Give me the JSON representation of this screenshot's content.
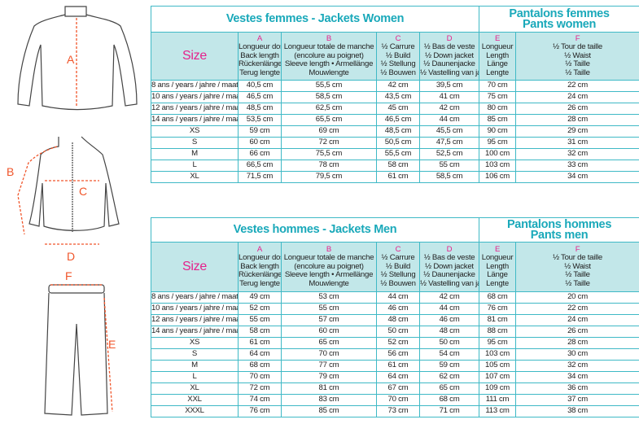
{
  "figure_labels": {
    "a": "A",
    "b": "B",
    "c": "C",
    "d": "D",
    "e": "E",
    "f": "F"
  },
  "colors": {
    "border": "#3fb9c6",
    "header_bg": "#c2e7e9",
    "title": "#1aa9ba",
    "letters": "#e5218b",
    "measure_lines": "#f0552a"
  },
  "columns": [
    {
      "letter": "",
      "lines": [
        "Size"
      ]
    },
    {
      "letter": "A",
      "lines": [
        "Longueur dos",
        "Back length",
        "Rückenlänge",
        "Terug lengte"
      ]
    },
    {
      "letter": "B",
      "lines": [
        "Longueur totale de manche",
        "(encolure au poignet)",
        "Sleeve length • Armellänge",
        "Mouwlengte"
      ]
    },
    {
      "letter": "C",
      "lines": [
        "½ Carrure",
        "½ Build",
        "½ Stellung",
        "½ Bouwen"
      ]
    },
    {
      "letter": "D",
      "lines": [
        "½ Bas de veste",
        "½ Down jacket",
        "½ Daunenjacke",
        "½ Vastelling van jas"
      ]
    },
    {
      "letter": "E",
      "lines": [
        "Longueur",
        "Length",
        "Länge",
        "Lengte"
      ]
    },
    {
      "letter": "F",
      "lines": [
        "½ Tour de taille",
        "½ Waist",
        "½ Taille",
        "½ Taille"
      ]
    }
  ],
  "tables": [
    {
      "title": "Vestes femmes - Jackets Women",
      "pants_title": [
        "Pantalons femmes",
        "Pants women"
      ],
      "rows": [
        [
          "8 ans / years / jahre / maat",
          "40,5 cm",
          "55,5 cm",
          "42 cm",
          "39,5 cm",
          "70 cm",
          "22 cm"
        ],
        [
          "10 ans / years / jahre / maat",
          "46,5 cm",
          "58,5 cm",
          "43,5 cm",
          "41 cm",
          "75 cm",
          "24 cm"
        ],
        [
          "12 ans / years / jahre / maat",
          "48,5 cm",
          "62,5 cm",
          "45 cm",
          "42 cm",
          "80 cm",
          "26 cm"
        ],
        [
          "14 ans / years / jahre / maat",
          "53,5 cm",
          "65,5 cm",
          "46,5 cm",
          "44 cm",
          "85 cm",
          "28 cm"
        ],
        [
          "XS",
          "59 cm",
          "69 cm",
          "48,5 cm",
          "45,5 cm",
          "90 cm",
          "29 cm"
        ],
        [
          "S",
          "60 cm",
          "72 cm",
          "50,5 cm",
          "47,5 cm",
          "95 cm",
          "31 cm"
        ],
        [
          "M",
          "66 cm",
          "75,5 cm",
          "55,5 cm",
          "52,5 cm",
          "100 cm",
          "32 cm"
        ],
        [
          "L",
          "66,5 cm",
          "78 cm",
          "58 cm",
          "55 cm",
          "103 cm",
          "33 cm"
        ],
        [
          "XL",
          "71,5 cm",
          "79,5 cm",
          "61 cm",
          "58,5 cm",
          "106 cm",
          "34 cm"
        ]
      ]
    },
    {
      "title": "Vestes hommes - Jackets Men",
      "pants_title": [
        "Pantalons hommes",
        "Pants men"
      ],
      "rows": [
        [
          "8 ans / years / jahre / maat",
          "49 cm",
          "53 cm",
          "44 cm",
          "42 cm",
          "68 cm",
          "20 cm"
        ],
        [
          "10 ans / years / jahre / maat",
          "52 cm",
          "55 cm",
          "46 cm",
          "44 cm",
          "76 cm",
          "22 cm"
        ],
        [
          "12 ans / years / jahre / maat",
          "55 cm",
          "57 cm",
          "48 cm",
          "46 cm",
          "81 cm",
          "24 cm"
        ],
        [
          "14 ans / years / jahre / maat",
          "58 cm",
          "60 cm",
          "50 cm",
          "48 cm",
          "88 cm",
          "26 cm"
        ],
        [
          "XS",
          "61 cm",
          "65 cm",
          "52 cm",
          "50 cm",
          "95 cm",
          "28 cm"
        ],
        [
          "S",
          "64 cm",
          "70 cm",
          "56 cm",
          "54 cm",
          "103 cm",
          "30 cm"
        ],
        [
          "M",
          "68 cm",
          "77 cm",
          "61 cm",
          "59 cm",
          "105 cm",
          "32 cm"
        ],
        [
          "L",
          "70 cm",
          "79 cm",
          "64 cm",
          "62 cm",
          "107 cm",
          "34 cm"
        ],
        [
          "XL",
          "72 cm",
          "81 cm",
          "67 cm",
          "65 cm",
          "109 cm",
          "36 cm"
        ],
        [
          "XXL",
          "74 cm",
          "83 cm",
          "70 cm",
          "68 cm",
          "111 cm",
          "37 cm"
        ],
        [
          "XXXL",
          "76 cm",
          "85 cm",
          "73 cm",
          "71 cm",
          "113 cm",
          "38 cm"
        ]
      ]
    }
  ]
}
